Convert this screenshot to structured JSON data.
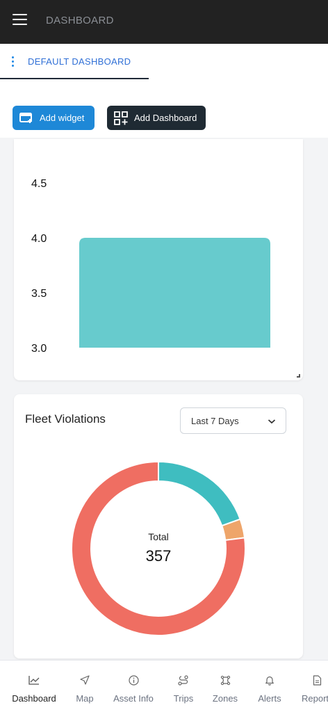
{
  "header": {
    "title": "DASHBOARD",
    "menu_icon": "hamburger-icon"
  },
  "tabs": {
    "active_label": "DEFAULT DASHBOARD",
    "menu_icon": "vertical-dots-icon"
  },
  "toolbar": {
    "add_widget_label": "Add widget",
    "add_widget_icon": "add-widget-icon",
    "add_dashboard_label": "Add Dashboard",
    "add_dashboard_icon": "add-dashboard-icon"
  },
  "bar_widget": {
    "chart_data": {
      "type": "bar",
      "y_ticks": [
        "4.5",
        "4.0",
        "3.5",
        "3.0"
      ],
      "ylim": [
        3.0,
        4.5
      ],
      "values": [
        4.0
      ],
      "color": "#67cbcd"
    }
  },
  "violations_widget": {
    "title": "Fleet Violations",
    "period_select": {
      "value": "Last 7 Days"
    },
    "center_label": "Total",
    "total": "357",
    "chart_data": {
      "type": "pie",
      "slices": [
        {
          "value": 0.195,
          "color": "#3fbdc0"
        },
        {
          "value": 0.035,
          "color": "#eea56a"
        },
        {
          "value": 0.77,
          "color": "#ef6e62"
        }
      ]
    }
  },
  "bottom_nav": [
    {
      "label": "Dashboard",
      "icon": "chart-line-icon",
      "active": true
    },
    {
      "label": "Map",
      "icon": "navigation-arrow-icon"
    },
    {
      "label": "Asset Info",
      "icon": "info-circle-icon"
    },
    {
      "label": "Trips",
      "icon": "route-icon"
    },
    {
      "label": "Zones",
      "icon": "zone-icon"
    },
    {
      "label": "Alerts",
      "icon": "bell-icon"
    },
    {
      "label": "Report",
      "icon": "document-icon"
    }
  ]
}
